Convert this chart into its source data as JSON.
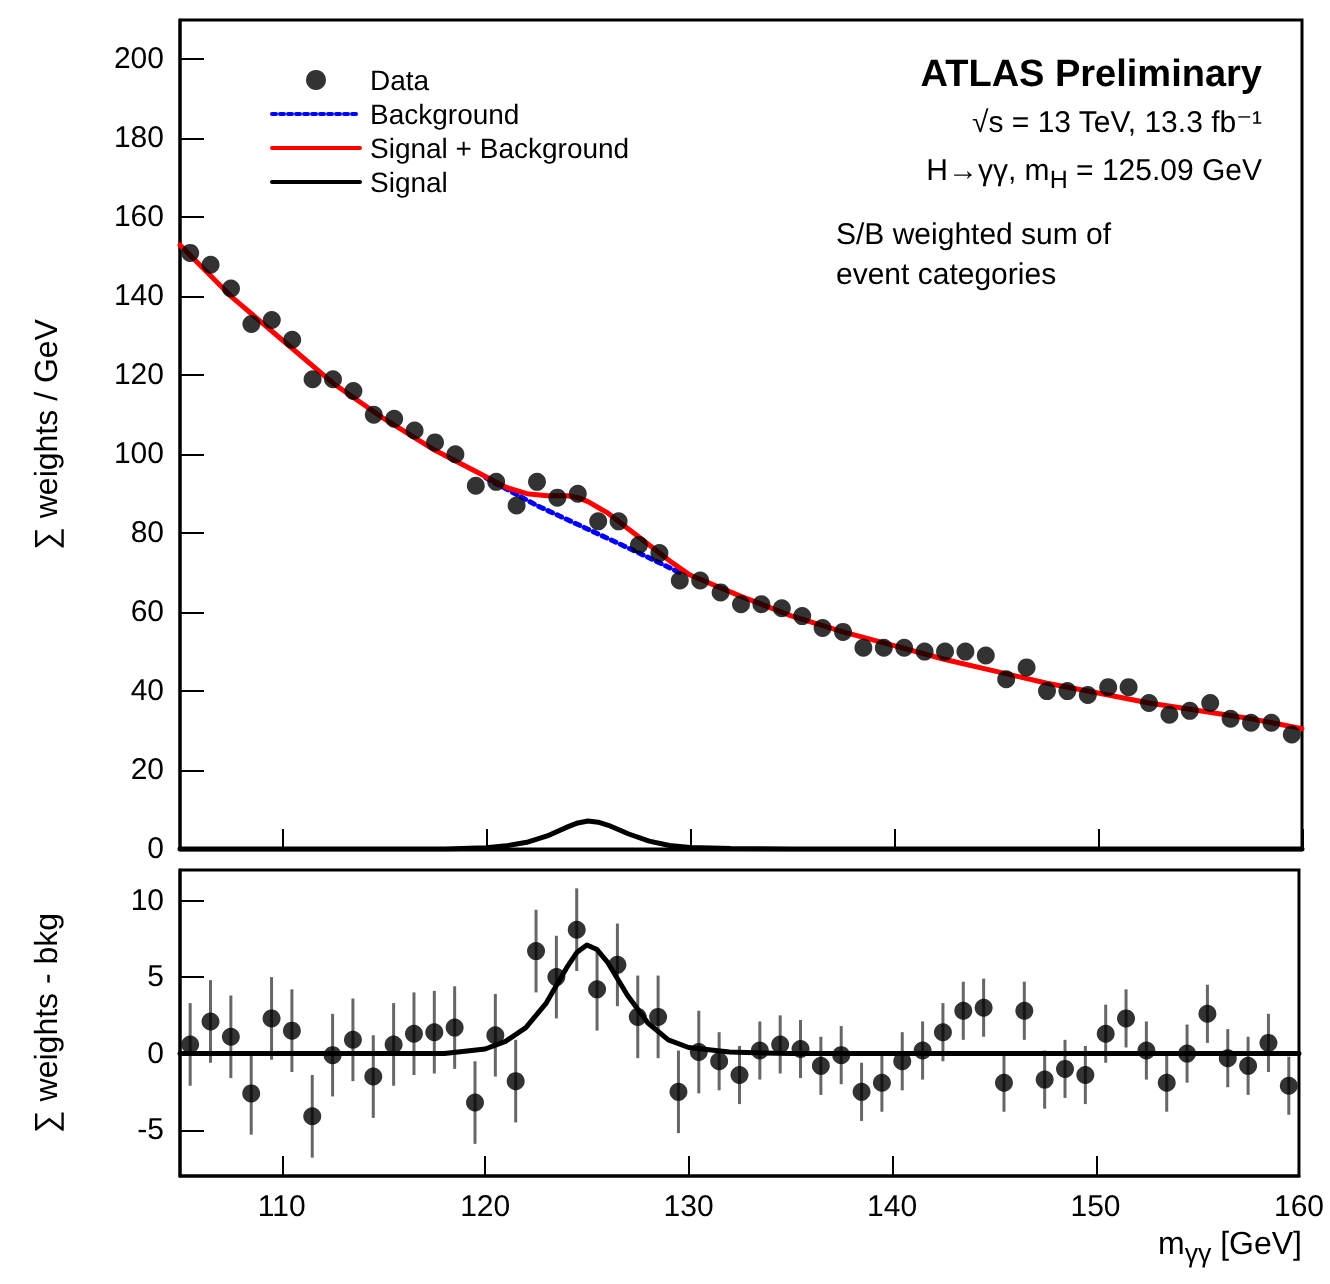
{
  "chart_data": [
    {
      "type": "scatter",
      "ylabel": "∑ weights / GeV",
      "annotations": [
        "ATLAS Preliminary",
        "√s = 13 TeV, 13.3 fb⁻¹",
        "H→γγ, m$_{H}$ = 125.09 GeV",
        "S/B weighted sum of\nevent categories"
      ],
      "x": [
        105.5,
        106.5,
        107.5,
        108.5,
        109.5,
        110.5,
        111.5,
        112.5,
        113.5,
        114.5,
        115.5,
        116.5,
        117.5,
        118.5,
        119.5,
        120.5,
        121.5,
        122.5,
        123.5,
        124.5,
        125.5,
        126.5,
        127.5,
        128.5,
        129.5,
        130.5,
        131.5,
        132.5,
        133.5,
        134.5,
        135.5,
        136.5,
        137.5,
        138.5,
        139.5,
        140.5,
        141.5,
        142.5,
        143.5,
        144.5,
        145.5,
        146.5,
        147.5,
        148.5,
        149.5,
        150.5,
        151.5,
        152.5,
        153.5,
        154.5,
        155.5,
        156.5,
        157.5,
        158.5,
        159.5
      ],
      "series": [
        {
          "name": "Data",
          "marker": "circle",
          "color": "#000000",
          "values": [
            151,
            148,
            142,
            133,
            134,
            129,
            119,
            119,
            116,
            110,
            109,
            106,
            103,
            100,
            92,
            93,
            87,
            93,
            89,
            90,
            83,
            83,
            77,
            75,
            68,
            68,
            65,
            62,
            62,
            61,
            59,
            56,
            55,
            51,
            51,
            51,
            50,
            50,
            50,
            49,
            43,
            46,
            40,
            40,
            39,
            41,
            41,
            37,
            34,
            35,
            37,
            33,
            32,
            32,
            29
          ]
        },
        {
          "name": "Background",
          "type": "line",
          "marker": "none",
          "line_style": "dotted",
          "color": "#0000ff",
          "x": [
            120,
            122.5,
            125,
            127.5,
            129.5
          ],
          "values": [
            94,
            87,
            81,
            75,
            70
          ]
        },
        {
          "name": "Signal + Background",
          "type": "line",
          "marker": "none",
          "line_style": "solid",
          "color": "#ff0000",
          "x": [
            105,
            107.5,
            110,
            112.5,
            115,
            117.5,
            120,
            121,
            122,
            123,
            124,
            124.5,
            125,
            125.5,
            126,
            127,
            128,
            129,
            130,
            132.5,
            135,
            137.5,
            140,
            142.5,
            145,
            147.5,
            150,
            152.5,
            155,
            157.5,
            160
          ],
          "values": [
            153,
            140,
            129,
            118,
            109,
            101,
            94.3,
            91.6,
            90,
            89.5,
            89.5,
            89,
            88,
            86.5,
            85,
            81,
            77,
            73,
            69.4,
            64,
            59,
            55,
            51.5,
            48,
            45,
            42,
            39.5,
            37,
            35,
            33,
            30.5
          ]
        },
        {
          "name": "Signal",
          "type": "line",
          "marker": "none",
          "line_style": "solid",
          "color": "#000000",
          "x": [
            105,
            118,
            120,
            121,
            122,
            123,
            124,
            124.5,
            125,
            125.5,
            126,
            127,
            128,
            129,
            130,
            132,
            135,
            160
          ],
          "values": [
            0,
            0,
            0.3,
            0.8,
            1.7,
            3.3,
            5.6,
            6.6,
            7.1,
            6.8,
            6,
            3.8,
            2,
            0.9,
            0.4,
            0.1,
            0,
            0
          ]
        }
      ],
      "xlim": [
        105,
        160
      ],
      "xticks": [
        110,
        120,
        130,
        140,
        150,
        160
      ],
      "ylim": [
        0,
        210
      ],
      "yticks": [
        0,
        20,
        40,
        60,
        80,
        100,
        120,
        140,
        160,
        180,
        200
      ],
      "tick_labels": "y",
      "grid": false,
      "legend": "top left"
    },
    {
      "type": "scatter",
      "ylabel": "∑ weights - bkg",
      "xlabel": "m$_{γγ}$ [GeV]",
      "x": [
        105.5,
        106.5,
        107.5,
        108.5,
        109.5,
        110.5,
        111.5,
        112.5,
        113.5,
        114.5,
        115.5,
        116.5,
        117.5,
        118.5,
        119.5,
        120.5,
        121.5,
        122.5,
        123.5,
        124.5,
        125.5,
        126.5,
        127.5,
        128.5,
        129.5,
        130.5,
        131.5,
        132.5,
        133.5,
        134.5,
        135.5,
        136.5,
        137.5,
        138.5,
        139.5,
        140.5,
        141.5,
        142.5,
        143.5,
        144.5,
        145.5,
        146.5,
        147.5,
        148.5,
        149.5,
        150.5,
        151.5,
        152.5,
        153.5,
        154.5,
        155.5,
        156.5,
        157.5,
        158.5,
        159.5
      ],
      "series": [
        {
          "marker": "circle",
          "color": "#000000",
          "values": [
            0.6,
            2.1,
            1.1,
            -2.6,
            2.3,
            1.5,
            -4.1,
            -0.1,
            0.9,
            -1.5,
            0.6,
            1.3,
            1.4,
            1.7,
            -3.2,
            1.2,
            -1.8,
            6.7,
            5.0,
            8.1,
            4.2,
            5.8,
            2.4,
            2.4,
            -2.5,
            0.1,
            -0.5,
            -1.4,
            0.2,
            0.6,
            0.3,
            -0.8,
            -0.1,
            -2.5,
            -1.9,
            -0.5,
            0.2,
            1.4,
            2.8,
            3.0,
            -1.9,
            2.8,
            -1.7,
            -1.0,
            -1.4,
            1.3,
            2.3,
            0.2,
            -1.9,
            0.0,
            2.6,
            -0.3,
            -0.8,
            0.7,
            -2.1
          ],
          "errors": [
            2.7,
            2.7,
            2.7,
            2.7,
            2.7,
            2.7,
            2.7,
            2.7,
            2.7,
            2.7,
            2.7,
            2.7,
            2.7,
            2.7,
            2.7,
            2.7,
            2.7,
            2.7,
            2.7,
            2.7,
            2.7,
            2.7,
            2.7,
            2.7,
            2.7,
            2.7,
            1.9,
            1.9,
            1.9,
            1.9,
            1.9,
            1.9,
            1.9,
            1.9,
            1.9,
            1.9,
            1.9,
            1.9,
            1.9,
            1.9,
            1.9,
            1.9,
            1.9,
            1.9,
            1.9,
            1.9,
            1.9,
            1.9,
            1.9,
            1.9,
            1.9,
            1.9,
            1.9,
            1.9,
            1.9
          ]
        },
        {
          "type": "line",
          "marker": "none",
          "line_style": "solid",
          "color": "#000000",
          "x": [
            105,
            118,
            120,
            121,
            122,
            123,
            124,
            124.5,
            125,
            125.5,
            126,
            127,
            128,
            129,
            130,
            132,
            135,
            160
          ],
          "values": [
            0,
            0,
            0.3,
            0.8,
            1.7,
            3.3,
            5.6,
            6.6,
            7.1,
            6.8,
            6,
            3.8,
            2,
            0.9,
            0.4,
            0.1,
            0,
            0
          ]
        }
      ],
      "xlim": [
        105,
        160
      ],
      "xticks": [
        110,
        120,
        130,
        140,
        150,
        160
      ],
      "ylim": [
        -8,
        12
      ],
      "yticks": [
        -5,
        0,
        5,
        10
      ],
      "grid": false
    }
  ]
}
